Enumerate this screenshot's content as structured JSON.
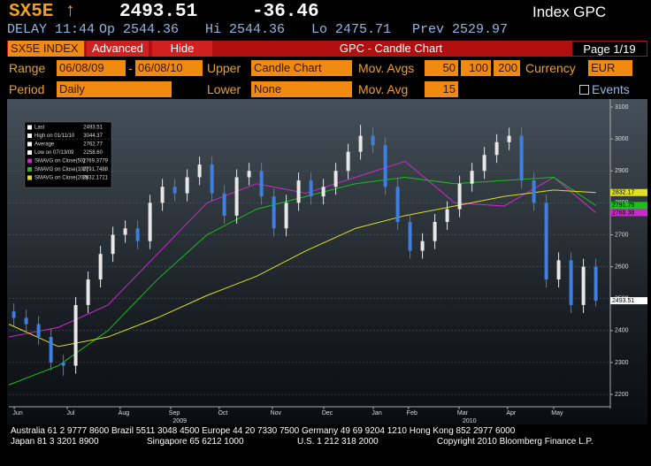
{
  "header": {
    "ticker": "SX5E ↑",
    "last": "2493.51",
    "change": "-36.46",
    "index": "Index GPC",
    "delay": "DELAY 11:44",
    "open": "Op 2544.36",
    "high": "Hi 2544.36",
    "low": "Lo 2475.71",
    "prev": "Prev 2529.97"
  },
  "toolbar": {
    "security": "SX5E INDEX",
    "advanced": "Advanced",
    "hide": "Hide",
    "title": "GPC - Candle Chart",
    "page": "Page 1/19"
  },
  "form": {
    "range_label": "Range",
    "range_start": "06/08/09",
    "range_sep": "-",
    "range_end": "06/08/10",
    "upper_label": "Upper",
    "upper": "Candle Chart",
    "movavgs_label": "Mov. Avgs",
    "ma1": "50",
    "ma2": "100",
    "ma3": "200",
    "currency_label": "Currency",
    "currency": "EUR",
    "period_label": "Period",
    "period": "Daily",
    "lower_label": "Lower",
    "lower": "None",
    "movavg_label": "Mov. Avg",
    "movavg": "15",
    "events": "Events"
  },
  "footer": {
    "line1": "Australia 61 2 9777 8600 Brazil 5511 3048 4500 Europe 44 20 7330 7500 Germany 49 69 9204 1210 Hong Kong 852 2977 6000",
    "japan": "Japan 81 3 3201 8900",
    "singapore": "Singapore 65 6212 1000",
    "us": "U.S. 1 212 318 2000",
    "copyright": "Copyright 2010 Bloomberg Finance L.P."
  },
  "chart_data": {
    "type": "candlestick",
    "xlim": [
      0,
      12
    ],
    "ylim": [
      2167,
      3125
    ],
    "grid": true,
    "xticks": [
      {
        "value": 0.18,
        "label": "Jun"
      },
      {
        "value": 1.25,
        "label": "Jul"
      },
      {
        "value": 2.32,
        "label": "Aug"
      },
      {
        "value": 3.34,
        "label": "Sep"
      },
      {
        "value": 4.32,
        "label": "Oct"
      },
      {
        "value": 5.39,
        "label": "Nov"
      },
      {
        "value": 6.43,
        "label": "Dec"
      },
      {
        "value": 7.43,
        "label": "Jan"
      },
      {
        "value": 8.14,
        "label": "Feb"
      },
      {
        "value": 9.16,
        "label": "Mar"
      },
      {
        "value": 10.14,
        "label": "Apr"
      },
      {
        "value": 11.07,
        "label": "May"
      }
    ],
    "year_labels": [
      {
        "value": 3.45,
        "label": "2009"
      },
      {
        "value": 9.3,
        "label": "2010"
      }
    ],
    "yticks": [
      2200,
      2300,
      2400,
      2500,
      2600,
      2700,
      2800,
      2900,
      3000,
      3100
    ],
    "up_color": "#e8e8e8",
    "down_color": "#3f7fe0",
    "candles": {
      "x": [
        0.1,
        0.35,
        0.6,
        0.85,
        1.1,
        1.35,
        1.6,
        1.85,
        2.1,
        2.35,
        2.6,
        2.85,
        3.1,
        3.35,
        3.6,
        3.85,
        4.1,
        4.35,
        4.6,
        4.85,
        5.1,
        5.35,
        5.6,
        5.85,
        6.1,
        6.35,
        6.6,
        6.85,
        7.1,
        7.35,
        7.6,
        7.85,
        8.1,
        8.35,
        8.6,
        8.85,
        9.1,
        9.35,
        9.6,
        9.85,
        10.1,
        10.35,
        10.6,
        10.85,
        11.1,
        11.35,
        11.6,
        11.85
      ],
      "open": [
        2460,
        2440,
        2420,
        2380,
        2300,
        2290,
        2480,
        2560,
        2640,
        2700,
        2720,
        2680,
        2800,
        2850,
        2830,
        2880,
        2920,
        2830,
        2760,
        2880,
        2900,
        2820,
        2720,
        2800,
        2870,
        2820,
        2850,
        2900,
        2960,
        3010,
        2980,
        2850,
        2740,
        2650,
        2680,
        2740,
        2780,
        2860,
        2900,
        2950,
        2990,
        3010,
        2870,
        2800,
        2560,
        2620,
        2480,
        2600
      ],
      "high": [
        2485,
        2465,
        2445,
        2405,
        2325,
        2505,
        2585,
        2665,
        2725,
        2745,
        2745,
        2825,
        2875,
        2875,
        2905,
        2945,
        2945,
        2855,
        2905,
        2925,
        2925,
        2845,
        2825,
        2895,
        2895,
        2875,
        2925,
        2985,
        3044.37,
        3035,
        3005,
        2875,
        2765,
        2705,
        2765,
        2805,
        2885,
        2925,
        2975,
        3015,
        3035,
        3035,
        2895,
        2825,
        2645,
        2645,
        2625,
        2625
      ],
      "low": [
        2415,
        2395,
        2355,
        2275,
        2258.6,
        2265,
        2455,
        2535,
        2615,
        2675,
        2655,
        2655,
        2775,
        2805,
        2805,
        2855,
        2805,
        2735,
        2735,
        2855,
        2795,
        2695,
        2695,
        2775,
        2795,
        2795,
        2825,
        2875,
        2935,
        2955,
        2825,
        2715,
        2625,
        2625,
        2655,
        2715,
        2755,
        2835,
        2875,
        2925,
        2965,
        2845,
        2775,
        2535,
        2535,
        2455,
        2455,
        2475.71
      ],
      "close": [
        2440,
        2420,
        2380,
        2300,
        2290,
        2480,
        2560,
        2640,
        2700,
        2720,
        2680,
        2800,
        2850,
        2830,
        2880,
        2920,
        2830,
        2760,
        2880,
        2900,
        2820,
        2720,
        2800,
        2870,
        2820,
        2850,
        2900,
        2960,
        3010,
        2980,
        2850,
        2740,
        2650,
        2680,
        2740,
        2780,
        2860,
        2900,
        2950,
        2990,
        3010,
        2870,
        2800,
        2560,
        2620,
        2480,
        2600,
        2493.51
      ]
    },
    "series": [
      {
        "name": "SMAVG on Close(50)",
        "color": "#d028d0",
        "x": [
          0,
          1,
          2,
          3,
          4,
          5,
          6,
          7,
          8,
          9,
          10,
          11,
          11.85
        ],
        "values": [
          2380,
          2410,
          2480,
          2640,
          2800,
          2860,
          2830,
          2880,
          2930,
          2800,
          2790,
          2880,
          2769.3779
        ],
        "value_labels": [
          null,
          null,
          null,
          null,
          null,
          null,
          null,
          null,
          null,
          null,
          null,
          null,
          "2769.38"
        ]
      },
      {
        "name": "SMAVG on Close(100)",
        "color": "#18c018",
        "x": [
          0,
          1,
          2,
          3,
          4,
          5,
          6,
          7,
          8,
          9,
          10,
          11,
          11.85
        ],
        "values": [
          2230,
          2290,
          2400,
          2560,
          2700,
          2780,
          2820,
          2860,
          2880,
          2860,
          2870,
          2880,
          2791.7488
        ],
        "value_labels": [
          null,
          null,
          null,
          null,
          null,
          null,
          null,
          null,
          null,
          null,
          null,
          null,
          "2791.75"
        ]
      },
      {
        "name": "SMAVG on Close(200)",
        "color": "#e0e020",
        "x": [
          0,
          1,
          2,
          3,
          4,
          5,
          6,
          7,
          8,
          9,
          10,
          11,
          11.85
        ],
        "values": [
          2420,
          2350,
          2380,
          2440,
          2510,
          2570,
          2650,
          2720,
          2760,
          2790,
          2820,
          2840,
          2832.1721
        ],
        "value_labels": [
          null,
          null,
          null,
          null,
          null,
          null,
          null,
          null,
          null,
          null,
          null,
          null,
          "2832.17"
        ]
      }
    ],
    "legend": [
      {
        "label": "Last",
        "value": "2493.51"
      },
      {
        "label": "High on 01/11/10",
        "value": "3044.37"
      },
      {
        "label": "Average",
        "value": "2762.77"
      },
      {
        "label": "Low on 07/13/09",
        "value": "2258.60"
      }
    ]
  }
}
